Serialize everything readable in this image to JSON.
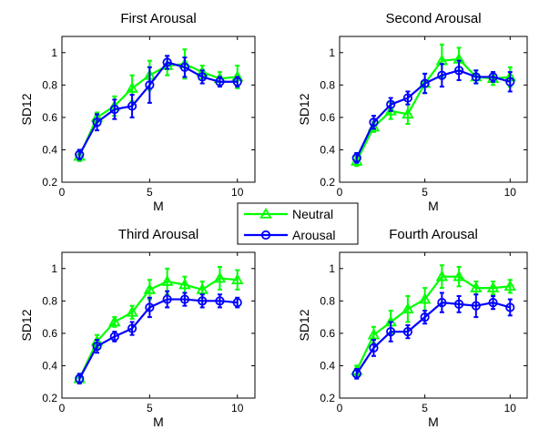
{
  "legend": {
    "position": "center",
    "entries": [
      {
        "name": "Neutral",
        "color": "#00ff00",
        "marker": "triangle-up"
      },
      {
        "name": "Arousal",
        "color": "#0000ff",
        "marker": "circle"
      }
    ]
  },
  "chart_data": [
    {
      "type": "line",
      "title": "First Arousal",
      "xlabel": "M",
      "ylabel": "SD12",
      "xlim": [
        0,
        11
      ],
      "ylim": [
        0.2,
        1.1
      ],
      "xticks": [
        0,
        5,
        10
      ],
      "xtick_labels": [
        "0",
        "5",
        "10"
      ],
      "yticks": [
        0.2,
        0.4,
        0.6,
        0.8,
        1.0
      ],
      "ytick_labels": [
        "0.2",
        "0.4",
        "0.6",
        "0.8",
        "1"
      ],
      "grid": false,
      "x": [
        1,
        2,
        3,
        4,
        5,
        6,
        7,
        8,
        9,
        10
      ],
      "series": [
        {
          "name": "Neutral",
          "color": "#00ff00",
          "marker": "triangle-up",
          "values": [
            0.36,
            0.6,
            0.67,
            0.78,
            0.86,
            0.92,
            0.93,
            0.88,
            0.84,
            0.85
          ],
          "errors": [
            0.03,
            0.03,
            0.06,
            0.08,
            0.09,
            0.06,
            0.09,
            0.04,
            0.04,
            0.07
          ]
        },
        {
          "name": "Arousal",
          "color": "#0000ff",
          "marker": "circle",
          "values": [
            0.37,
            0.57,
            0.65,
            0.67,
            0.8,
            0.94,
            0.91,
            0.85,
            0.82,
            0.82
          ],
          "errors": [
            0.03,
            0.05,
            0.06,
            0.07,
            0.11,
            0.04,
            0.06,
            0.04,
            0.03,
            0.03
          ]
        }
      ]
    },
    {
      "type": "line",
      "title": "Second Arousal",
      "xlabel": "M",
      "ylabel": "SD12",
      "xlim": [
        0,
        11
      ],
      "ylim": [
        0.2,
        1.1
      ],
      "xticks": [
        0,
        5,
        10
      ],
      "xtick_labels": [
        "0",
        "5",
        "10"
      ],
      "yticks": [
        0.2,
        0.4,
        0.6,
        0.8,
        1.0
      ],
      "ytick_labels": [
        "0.2",
        "0.4",
        "0.6",
        "0.8",
        "1"
      ],
      "grid": false,
      "x": [
        1,
        2,
        3,
        4,
        5,
        6,
        7,
        8,
        9,
        10
      ],
      "series": [
        {
          "name": "Neutral",
          "color": "#00ff00",
          "marker": "triangle-up",
          "values": [
            0.33,
            0.54,
            0.64,
            0.62,
            0.81,
            0.95,
            0.96,
            0.85,
            0.84,
            0.85
          ],
          "errors": [
            0.03,
            0.03,
            0.05,
            0.06,
            0.06,
            0.1,
            0.07,
            0.04,
            0.04,
            0.06
          ]
        },
        {
          "name": "Arousal",
          "color": "#0000ff",
          "marker": "circle",
          "values": [
            0.35,
            0.57,
            0.68,
            0.72,
            0.81,
            0.86,
            0.89,
            0.85,
            0.85,
            0.82
          ],
          "errors": [
            0.03,
            0.04,
            0.04,
            0.04,
            0.06,
            0.07,
            0.06,
            0.04,
            0.03,
            0.06
          ]
        }
      ]
    },
    {
      "type": "line",
      "title": "Third Arousal",
      "xlabel": "M",
      "ylabel": "SD12",
      "xlim": [
        0,
        11
      ],
      "ylim": [
        0.2,
        1.1
      ],
      "xticks": [
        0,
        5,
        10
      ],
      "xtick_labels": [
        "0",
        "5",
        "10"
      ],
      "yticks": [
        0.2,
        0.4,
        0.6,
        0.8,
        1.0
      ],
      "ytick_labels": [
        "0.2",
        "0.4",
        "0.6",
        "0.8",
        "1"
      ],
      "grid": false,
      "x": [
        1,
        2,
        3,
        4,
        5,
        6,
        7,
        8,
        9,
        10
      ],
      "series": [
        {
          "name": "Neutral",
          "color": "#00ff00",
          "marker": "triangle-up",
          "values": [
            0.32,
            0.55,
            0.67,
            0.73,
            0.87,
            0.92,
            0.9,
            0.87,
            0.94,
            0.93
          ],
          "errors": [
            0.02,
            0.04,
            0.03,
            0.04,
            0.06,
            0.08,
            0.05,
            0.05,
            0.07,
            0.06
          ]
        },
        {
          "name": "Arousal",
          "color": "#0000ff",
          "marker": "circle",
          "values": [
            0.32,
            0.52,
            0.58,
            0.63,
            0.76,
            0.81,
            0.81,
            0.8,
            0.8,
            0.79
          ],
          "errors": [
            0.03,
            0.04,
            0.03,
            0.04,
            0.06,
            0.05,
            0.04,
            0.04,
            0.04,
            0.03
          ]
        }
      ]
    },
    {
      "type": "line",
      "title": "Fourth Arousal",
      "xlabel": "M",
      "ylabel": "SD12",
      "xlim": [
        0,
        11
      ],
      "ylim": [
        0.2,
        1.1
      ],
      "xticks": [
        0,
        5,
        10
      ],
      "xtick_labels": [
        "0",
        "5",
        "10"
      ],
      "yticks": [
        0.2,
        0.4,
        0.6,
        0.8,
        1.0
      ],
      "ytick_labels": [
        "0.2",
        "0.4",
        "0.6",
        "0.8",
        "1"
      ],
      "grid": false,
      "x": [
        1,
        2,
        3,
        4,
        5,
        6,
        7,
        8,
        9,
        10
      ],
      "series": [
        {
          "name": "Neutral",
          "color": "#00ff00",
          "marker": "triangle-up",
          "values": [
            0.37,
            0.59,
            0.67,
            0.75,
            0.81,
            0.95,
            0.95,
            0.88,
            0.88,
            0.89
          ],
          "errors": [
            0.03,
            0.05,
            0.07,
            0.08,
            0.07,
            0.07,
            0.06,
            0.04,
            0.04,
            0.04
          ]
        },
        {
          "name": "Arousal",
          "color": "#0000ff",
          "marker": "circle",
          "values": [
            0.35,
            0.51,
            0.61,
            0.61,
            0.7,
            0.79,
            0.78,
            0.77,
            0.79,
            0.76
          ],
          "errors": [
            0.03,
            0.05,
            0.06,
            0.04,
            0.04,
            0.06,
            0.05,
            0.07,
            0.04,
            0.05
          ]
        }
      ]
    }
  ]
}
